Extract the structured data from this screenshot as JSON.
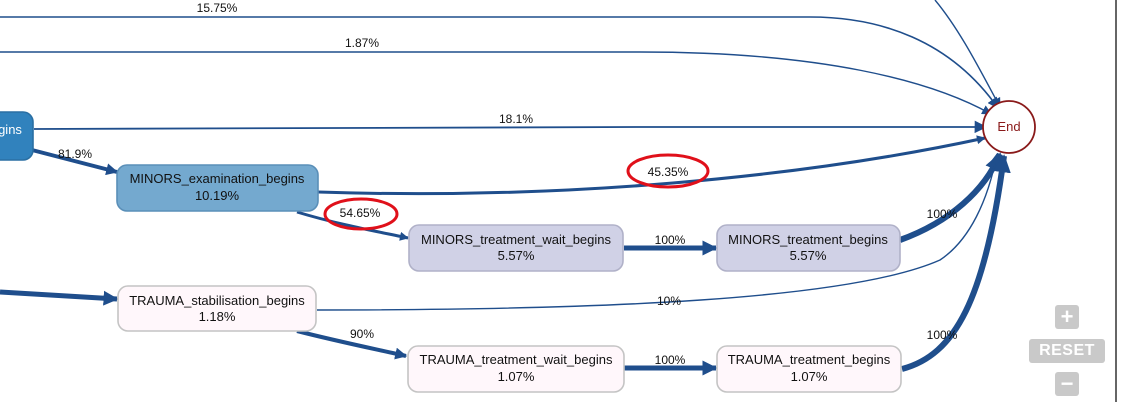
{
  "nodes": {
    "examination_begins_partial": {
      "label": "gins"
    },
    "minors_examination": {
      "label": "MINORS_examination_begins",
      "pct": "10.19%",
      "fill": "#74a9cf",
      "stroke": "#5a8fb8"
    },
    "minors_treatment_wait": {
      "label": "MINORS_treatment_wait_begins",
      "pct": "5.57%",
      "fill": "#d0d1e6",
      "stroke": "#b0b1c8"
    },
    "minors_treatment": {
      "label": "MINORS_treatment_begins",
      "pct": "5.57%",
      "fill": "#d0d1e6",
      "stroke": "#b0b1c8"
    },
    "trauma_stabilisation": {
      "label": "TRAUMA_stabilisation_begins",
      "pct": "1.18%",
      "fill": "#fff7fb",
      "stroke": "#c4c4c4"
    },
    "trauma_treatment_wait": {
      "label": "TRAUMA_treatment_wait_begins",
      "pct": "1.07%",
      "fill": "#fff7fb",
      "stroke": "#c4c4c4"
    },
    "trauma_treatment": {
      "label": "TRAUMA_treatment_begins",
      "pct": "1.07%",
      "fill": "#fff7fb",
      "stroke": "#c4c4c4"
    },
    "end": {
      "label": "End",
      "stroke": "#8a1a1a"
    }
  },
  "edges": {
    "top_to_end_a": "15.75%",
    "top_to_end_b": "1.87%",
    "exam_to_end": "18.1%",
    "exam_to_minors_exam": "81.9%",
    "minors_exam_to_end": "45.35%",
    "minors_exam_to_wait": "54.65%",
    "minors_wait_to_treatment": "100%",
    "minors_treatment_to_end": "100%",
    "trauma_stab_to_end": "10%",
    "trauma_stab_to_wait": "90%",
    "trauma_wait_to_treatment": "100%",
    "trauma_treatment_to_end": "100%"
  },
  "colors": {
    "edge": "#1f4e8c",
    "highlight": "#e0101a",
    "control_bg": "#c9c9c9"
  },
  "controls": {
    "zoom_in": "+",
    "reset": "RESET",
    "zoom_out": "−"
  }
}
